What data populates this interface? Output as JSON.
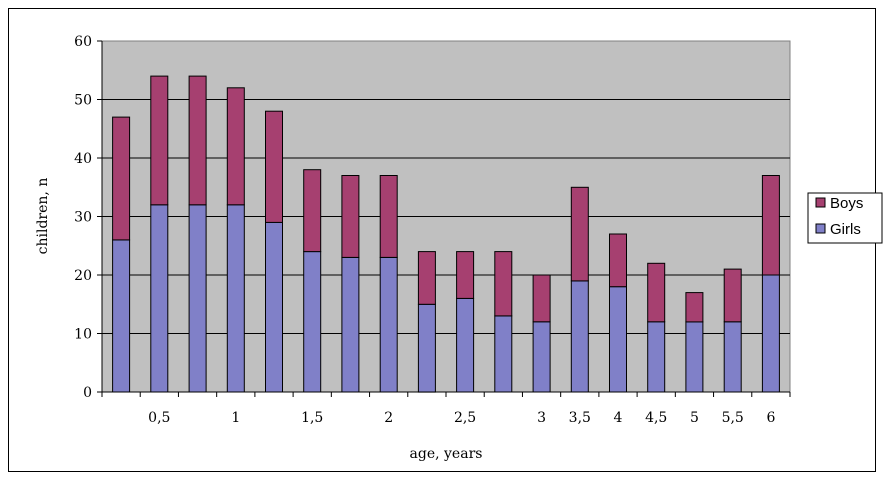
{
  "chart_data": {
    "type": "bar",
    "stacked": true,
    "title": "",
    "xlabel": "age, years",
    "ylabel": "children, n",
    "ylim": [
      0,
      60
    ],
    "yticks": [
      0,
      10,
      20,
      30,
      40,
      50,
      60
    ],
    "grid": true,
    "legend": "right",
    "categories": [
      "",
      "0,5",
      "",
      "1",
      "",
      "1,5",
      "",
      "2",
      "",
      "2,5",
      "",
      "3",
      "3,5",
      "4",
      "4,5",
      "5",
      "5,5",
      "6"
    ],
    "series": [
      {
        "name": "Girls",
        "color": "#8080c8",
        "values": [
          26,
          32,
          32,
          32,
          29,
          24,
          23,
          23,
          15,
          16,
          13,
          12,
          19,
          18,
          12,
          12,
          12,
          20
        ]
      },
      {
        "name": "Boys",
        "color": "#a64070",
        "values": [
          21,
          22,
          22,
          20,
          19,
          14,
          14,
          14,
          9,
          8,
          11,
          8,
          16,
          9,
          10,
          5,
          9,
          17
        ]
      }
    ],
    "legend_order": [
      "Boys",
      "Girls"
    ],
    "plot_background": "#c0c0c0"
  }
}
